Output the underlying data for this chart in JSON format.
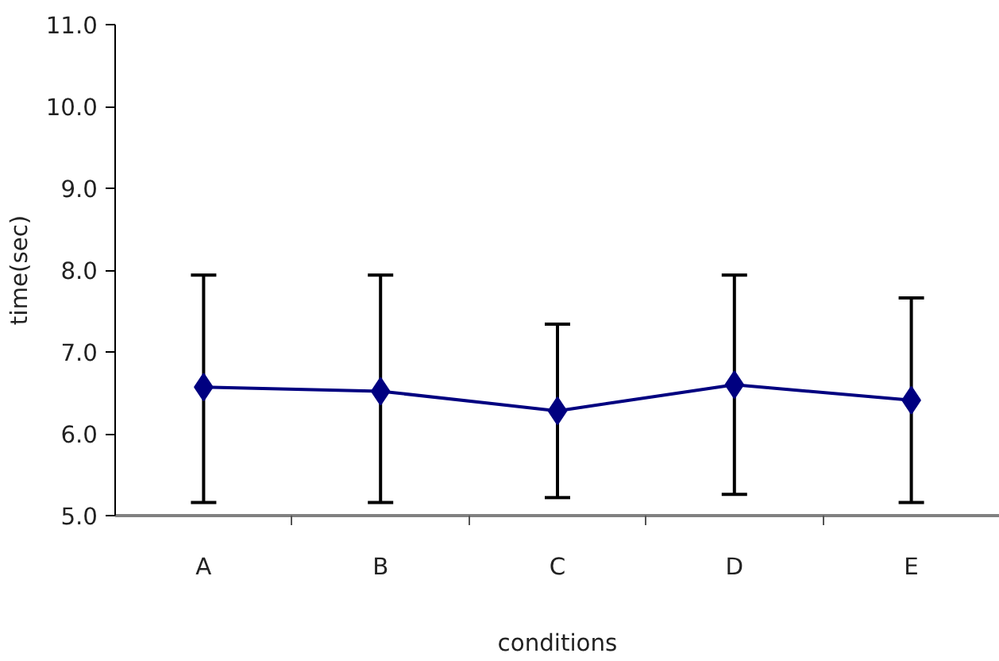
{
  "chart_data": {
    "type": "line",
    "xlabel": "conditions",
    "ylabel": "time(sec)",
    "categories": [
      "A",
      "B",
      "C",
      "D",
      "E"
    ],
    "series": [
      {
        "color": "#000080",
        "values": [
          6.57,
          6.52,
          6.28,
          6.6,
          6.41
        ],
        "errors": [
          [
            5.16,
            7.94
          ],
          [
            5.16,
            7.94
          ],
          [
            5.22,
            7.34
          ],
          [
            5.26,
            7.94
          ],
          [
            5.16,
            7.66
          ]
        ]
      }
    ],
    "ylim": [
      5.0,
      11.0
    ],
    "yticks": [
      {
        "value": 5,
        "label": "5.0"
      },
      {
        "value": 6,
        "label": "6.0"
      },
      {
        "value": 7,
        "label": "7.0"
      },
      {
        "value": 8,
        "label": "8.0"
      },
      {
        "value": 9,
        "label": "9.0"
      },
      {
        "value": 10,
        "label": "10.0"
      },
      {
        "value": 11,
        "label": "11.0"
      }
    ],
    "marker": "diamond",
    "line_style": "solid"
  }
}
